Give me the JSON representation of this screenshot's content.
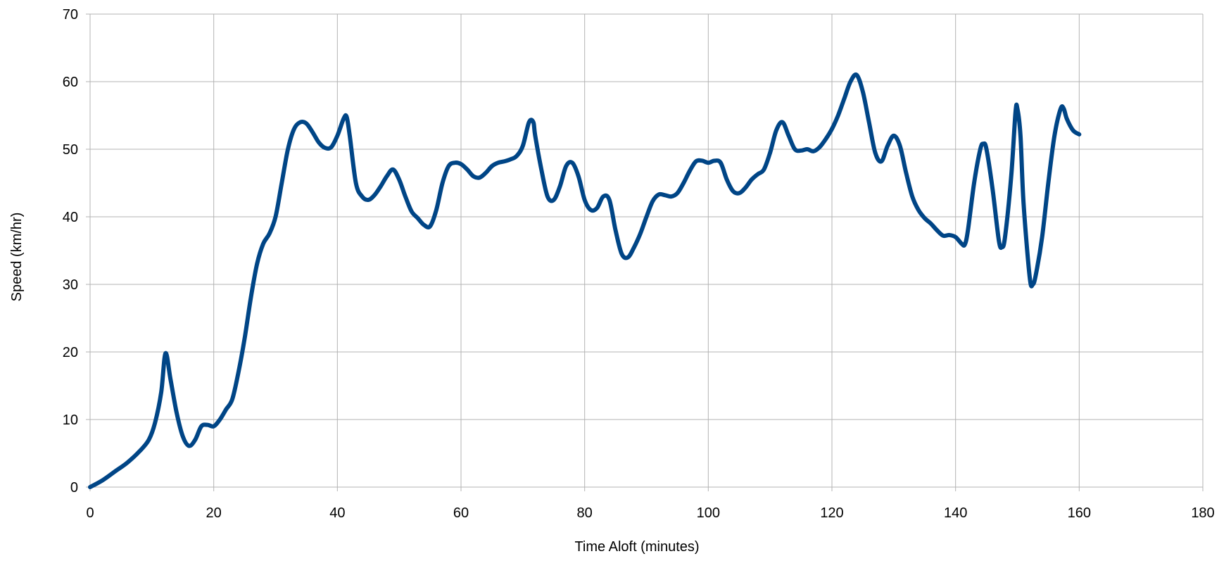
{
  "chart_data": {
    "type": "line",
    "title": "",
    "xlabel": "Time Aloft (minutes)",
    "ylabel": "Speed (km/hr)",
    "xlim": [
      0,
      180
    ],
    "ylim": [
      0,
      70
    ],
    "x_ticks": [
      "0",
      "20",
      "40",
      "60",
      "80",
      "100",
      "120",
      "140",
      "160",
      "180"
    ],
    "y_ticks": [
      "0",
      "10",
      "20",
      "30",
      "40",
      "50",
      "60",
      "70"
    ],
    "grid": true,
    "legend": "none",
    "colors": {
      "series": "#004586",
      "grid": "#b3b3b3"
    },
    "series": [
      {
        "points": [
          [
            0,
            0
          ],
          [
            2,
            1
          ],
          [
            4,
            2.3
          ],
          [
            6,
            3.6
          ],
          [
            8,
            5.3
          ],
          [
            9.5,
            7
          ],
          [
            10.5,
            9.5
          ],
          [
            11.5,
            14
          ],
          [
            12.2,
            19.8
          ],
          [
            13,
            16
          ],
          [
            14,
            11
          ],
          [
            15,
            7.5
          ],
          [
            16,
            6.1
          ],
          [
            17,
            7
          ],
          [
            18,
            9
          ],
          [
            19,
            9.2
          ],
          [
            20,
            9
          ],
          [
            21,
            10
          ],
          [
            22,
            11.5
          ],
          [
            23,
            13
          ],
          [
            24,
            17
          ],
          [
            25,
            22
          ],
          [
            26,
            28
          ],
          [
            27,
            33
          ],
          [
            28,
            36
          ],
          [
            29,
            37.5
          ],
          [
            30,
            40
          ],
          [
            31,
            45
          ],
          [
            32,
            50
          ],
          [
            33,
            53
          ],
          [
            34,
            54
          ],
          [
            35,
            53.8
          ],
          [
            36,
            52.5
          ],
          [
            37,
            51
          ],
          [
            38,
            50.2
          ],
          [
            39,
            50.3
          ],
          [
            40,
            52
          ],
          [
            41,
            54.5
          ],
          [
            41.5,
            54.8
          ],
          [
            42,
            52
          ],
          [
            43,
            45
          ],
          [
            44,
            43
          ],
          [
            45,
            42.5
          ],
          [
            46,
            43.2
          ],
          [
            47,
            44.5
          ],
          [
            48,
            46
          ],
          [
            49,
            47
          ],
          [
            50,
            45.5
          ],
          [
            51,
            43
          ],
          [
            52,
            40.8
          ],
          [
            53,
            39.8
          ],
          [
            54,
            38.8
          ],
          [
            55,
            38.6
          ],
          [
            56,
            41
          ],
          [
            57,
            45
          ],
          [
            58,
            47.5
          ],
          [
            59,
            48
          ],
          [
            60,
            47.8
          ],
          [
            61,
            47
          ],
          [
            62,
            46
          ],
          [
            63,
            45.8
          ],
          [
            64,
            46.5
          ],
          [
            65,
            47.5
          ],
          [
            66,
            48
          ],
          [
            67,
            48.2
          ],
          [
            68,
            48.5
          ],
          [
            69,
            49
          ],
          [
            70,
            50.5
          ],
          [
            71,
            54
          ],
          [
            71.7,
            54
          ],
          [
            72,
            52
          ],
          [
            73,
            47
          ],
          [
            74,
            43
          ],
          [
            75,
            42.5
          ],
          [
            76,
            44.5
          ],
          [
            77,
            47.5
          ],
          [
            78,
            48
          ],
          [
            79,
            46
          ],
          [
            80,
            42.5
          ],
          [
            81,
            41
          ],
          [
            82,
            41.3
          ],
          [
            83,
            43
          ],
          [
            84,
            42.5
          ],
          [
            85,
            38
          ],
          [
            86,
            34.5
          ],
          [
            87,
            34
          ],
          [
            88,
            35.5
          ],
          [
            89,
            37.5
          ],
          [
            90,
            40
          ],
          [
            91,
            42.3
          ],
          [
            92,
            43.3
          ],
          [
            93,
            43.2
          ],
          [
            94,
            43
          ],
          [
            95,
            43.5
          ],
          [
            96,
            45
          ],
          [
            97,
            46.8
          ],
          [
            98,
            48.2
          ],
          [
            99,
            48.3
          ],
          [
            100,
            48
          ],
          [
            101,
            48.3
          ],
          [
            102,
            48
          ],
          [
            103,
            45.5
          ],
          [
            104,
            43.8
          ],
          [
            105,
            43.5
          ],
          [
            106,
            44.3
          ],
          [
            107,
            45.5
          ],
          [
            108,
            46.3
          ],
          [
            109,
            47
          ],
          [
            110,
            49.5
          ],
          [
            111,
            52.8
          ],
          [
            112,
            54
          ],
          [
            113,
            52
          ],
          [
            114,
            50
          ],
          [
            115,
            49.8
          ],
          [
            116,
            50
          ],
          [
            117,
            49.7
          ],
          [
            118,
            50.3
          ],
          [
            119,
            51.5
          ],
          [
            120,
            53
          ],
          [
            121,
            55
          ],
          [
            122,
            57.5
          ],
          [
            123,
            60
          ],
          [
            124,
            61
          ],
          [
            125,
            58.5
          ],
          [
            126,
            54
          ],
          [
            127,
            49.5
          ],
          [
            128,
            48.2
          ],
          [
            129,
            50.5
          ],
          [
            130,
            52
          ],
          [
            131,
            50.5
          ],
          [
            132,
            46.5
          ],
          [
            133,
            43
          ],
          [
            134,
            41
          ],
          [
            135,
            39.8
          ],
          [
            136,
            39
          ],
          [
            137,
            38
          ],
          [
            138,
            37.2
          ],
          [
            139,
            37.3
          ],
          [
            140,
            37
          ],
          [
            141,
            36
          ],
          [
            141.5,
            35.9
          ],
          [
            142,
            38
          ],
          [
            143,
            45
          ],
          [
            144,
            50
          ],
          [
            144.5,
            50.8
          ],
          [
            145,
            50
          ],
          [
            146,
            44
          ],
          [
            147,
            36.5
          ],
          [
            147.5,
            35.5
          ],
          [
            148,
            37
          ],
          [
            149,
            46
          ],
          [
            149.7,
            55.5
          ],
          [
            150,
            56
          ],
          [
            150.5,
            52
          ],
          [
            151,
            42
          ],
          [
            152,
            31
          ],
          [
            152.5,
            30
          ],
          [
            153,
            31.5
          ],
          [
            154,
            37
          ],
          [
            155,
            45
          ],
          [
            156,
            52
          ],
          [
            157,
            56
          ],
          [
            157.5,
            56
          ],
          [
            158,
            54.5
          ],
          [
            159,
            52.8
          ],
          [
            160,
            52.2
          ]
        ]
      }
    ]
  }
}
